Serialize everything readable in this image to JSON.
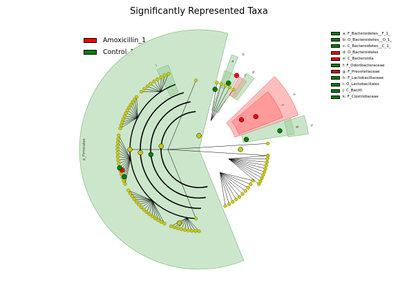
{
  "title": "Significantly Represented Taxa",
  "colors": {
    "red": "#ff0000",
    "green": "#008000",
    "node_yellow": "#c8c815"
  },
  "groups": [
    {
      "label": "Amoxicillin_1",
      "color": "#ff0000"
    },
    {
      "label": "Control_1",
      "color": "#008000"
    }
  ],
  "taxa": [
    {
      "label": "a: F_Bacteroidetes__F_1_",
      "color": "#008000"
    },
    {
      "label": "b: O_Bacteroidetes__O_1_",
      "color": "#008000"
    },
    {
      "label": "c: C_Bacteroidetes__C_1_",
      "color": "#008000"
    },
    {
      "label": "d: O_Bacteroidales",
      "color": "#ff0000"
    },
    {
      "label": "e: C_Bacteroidia",
      "color": "#ff0000"
    },
    {
      "label": "f: F_Odoribacteraceae",
      "color": "#008000"
    },
    {
      "label": "g: F_Prevotellaceae",
      "color": "#ff0000"
    },
    {
      "label": "h: F_Lactobacillaceae",
      "color": "#008000"
    },
    {
      "label": "i: O_Lactobacillales",
      "color": "#008000"
    },
    {
      "label": "j: C_Bacilli",
      "color": "#008000"
    },
    {
      "label": "k: F_Clostridiaceae",
      "color": "#008000"
    }
  ],
  "wedges": {
    "phylum": "p_Firmicutes",
    "letters": [
      "a",
      "b",
      "c",
      "d",
      "e",
      "f",
      "g",
      "h",
      "i",
      "j",
      "k"
    ]
  }
}
